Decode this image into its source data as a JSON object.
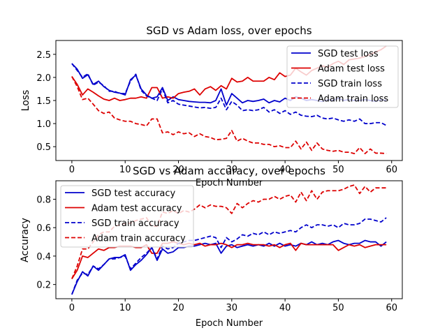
{
  "chart_data": [
    {
      "type": "line",
      "title": "SGD vs Adam loss, over epochs",
      "xlabel": "Epoch Number",
      "ylabel": "Loss",
      "xlim": [
        -3,
        62
      ],
      "ylim": [
        0.2,
        2.8
      ],
      "xticks": [
        0,
        10,
        20,
        30,
        40,
        50,
        60
      ],
      "yticks": [
        0.5,
        1.0,
        1.5,
        2.0,
        2.5
      ],
      "ytick_format": "1",
      "grid": false,
      "legend": "upper right",
      "series": [
        {
          "name": "SGD test loss",
          "color": "#0000cc",
          "dash": "solid",
          "values": [
            2.3,
            2.18,
            1.98,
            2.06,
            1.85,
            1.92,
            1.8,
            1.72,
            1.68,
            1.66,
            1.62,
            1.95,
            2.05,
            1.75,
            1.62,
            1.55,
            1.58,
            1.78,
            1.5,
            1.58,
            1.52,
            1.5,
            1.48,
            1.47,
            1.46,
            1.46,
            1.45,
            1.5,
            1.75,
            1.4,
            1.65,
            1.55,
            1.45,
            1.5,
            1.48,
            1.5,
            1.53,
            1.45,
            1.5,
            1.47,
            1.55,
            1.5,
            1.58,
            1.55,
            1.5,
            1.52,
            1.5,
            1.48,
            1.52,
            1.5,
            1.55,
            1.5,
            1.52,
            1.5,
            1.5,
            1.52,
            1.5,
            1.48,
            1.52,
            1.5
          ]
        },
        {
          "name": "Adam test loss",
          "color": "#dd0000",
          "dash": "solid",
          "values": [
            2.02,
            1.85,
            1.62,
            1.75,
            1.68,
            1.6,
            1.53,
            1.5,
            1.55,
            1.5,
            1.52,
            1.55,
            1.55,
            1.58,
            1.55,
            1.78,
            1.78,
            1.55,
            1.58,
            1.55,
            1.65,
            1.68,
            1.7,
            1.75,
            1.62,
            1.75,
            1.8,
            1.72,
            1.82,
            1.75,
            1.98,
            1.9,
            1.92,
            2.0,
            1.92,
            1.92,
            1.92,
            2.0,
            1.95,
            2.1,
            2.02,
            2.05,
            2.2,
            2.12,
            2.05,
            2.15,
            2.2,
            2.25,
            2.22,
            2.3,
            2.35,
            2.28,
            2.38,
            2.4,
            2.42,
            2.45,
            2.5,
            2.55,
            2.6,
            2.68
          ]
        },
        {
          "name": "SGD train loss",
          "color": "#0000cc",
          "dash": "dashed",
          "values": [
            2.3,
            2.15,
            2.0,
            2.08,
            1.83,
            1.9,
            1.82,
            1.7,
            1.7,
            1.65,
            1.65,
            1.92,
            2.07,
            1.72,
            1.6,
            1.55,
            1.5,
            1.75,
            1.45,
            1.5,
            1.42,
            1.4,
            1.38,
            1.36,
            1.34,
            1.35,
            1.33,
            1.35,
            1.55,
            1.3,
            1.48,
            1.4,
            1.28,
            1.3,
            1.28,
            1.3,
            1.35,
            1.25,
            1.3,
            1.22,
            1.28,
            1.2,
            1.25,
            1.18,
            1.16,
            1.15,
            1.18,
            1.12,
            1.1,
            1.12,
            1.08,
            1.05,
            1.08,
            1.05,
            1.1,
            1.0,
            1.0,
            1.02,
            1.02,
            0.96
          ]
        },
        {
          "name": "Adam train loss",
          "color": "#dd0000",
          "dash": "dashed",
          "values": [
            2.02,
            1.8,
            1.52,
            1.55,
            1.42,
            1.28,
            1.22,
            1.25,
            1.12,
            1.08,
            1.05,
            1.05,
            1.0,
            0.98,
            0.95,
            1.1,
            1.1,
            0.8,
            0.82,
            0.76,
            0.82,
            0.78,
            0.8,
            0.72,
            0.78,
            0.72,
            0.7,
            0.65,
            0.66,
            0.68,
            0.85,
            0.62,
            0.68,
            0.62,
            0.58,
            0.58,
            0.55,
            0.55,
            0.5,
            0.52,
            0.48,
            0.48,
            0.62,
            0.45,
            0.6,
            0.42,
            0.58,
            0.45,
            0.42,
            0.4,
            0.42,
            0.38,
            0.38,
            0.35,
            0.48,
            0.35,
            0.45,
            0.36,
            0.36,
            0.35
          ]
        }
      ]
    },
    {
      "type": "line",
      "title": "SGD vs Adam accuracy, over epochs",
      "xlabel": "Epoch Number",
      "ylabel": "Accuracy",
      "xlim": [
        -3,
        62
      ],
      "ylim": [
        0.1,
        0.93
      ],
      "xticks": [
        0,
        10,
        20,
        30,
        40,
        50,
        60
      ],
      "yticks": [
        0.2,
        0.4,
        0.6,
        0.8
      ],
      "ytick_format": "1",
      "grid": false,
      "legend": "upper left",
      "series": [
        {
          "name": "SGD test accuracy",
          "color": "#0000cc",
          "dash": "solid",
          "values": [
            0.13,
            0.22,
            0.29,
            0.26,
            0.33,
            0.3,
            0.34,
            0.38,
            0.39,
            0.39,
            0.41,
            0.3,
            0.34,
            0.37,
            0.41,
            0.46,
            0.37,
            0.45,
            0.42,
            0.43,
            0.46,
            0.46,
            0.47,
            0.47,
            0.48,
            0.49,
            0.48,
            0.49,
            0.42,
            0.47,
            0.48,
            0.46,
            0.47,
            0.48,
            0.47,
            0.48,
            0.47,
            0.49,
            0.47,
            0.49,
            0.47,
            0.48,
            0.47,
            0.49,
            0.48,
            0.5,
            0.48,
            0.49,
            0.48,
            0.5,
            0.51,
            0.49,
            0.48,
            0.49,
            0.49,
            0.51,
            0.5,
            0.5,
            0.47,
            0.5
          ]
        },
        {
          "name": "Adam test accuracy",
          "color": "#dd0000",
          "dash": "solid",
          "values": [
            0.24,
            0.3,
            0.4,
            0.39,
            0.42,
            0.45,
            0.44,
            0.46,
            0.46,
            0.47,
            0.47,
            0.47,
            0.46,
            0.46,
            0.48,
            0.42,
            0.42,
            0.49,
            0.49,
            0.5,
            0.49,
            0.48,
            0.49,
            0.48,
            0.49,
            0.47,
            0.48,
            0.48,
            0.49,
            0.48,
            0.46,
            0.48,
            0.48,
            0.49,
            0.48,
            0.48,
            0.48,
            0.47,
            0.48,
            0.46,
            0.48,
            0.49,
            0.44,
            0.49,
            0.48,
            0.48,
            0.48,
            0.48,
            0.48,
            0.48,
            0.44,
            0.46,
            0.48,
            0.47,
            0.48,
            0.46,
            0.47,
            0.48,
            0.48,
            0.48
          ]
        },
        {
          "name": "SGD train accuracy",
          "color": "#0000cc",
          "dash": "dashed",
          "values": [
            0.13,
            0.23,
            0.28,
            0.27,
            0.33,
            0.31,
            0.34,
            0.38,
            0.38,
            0.39,
            0.4,
            0.31,
            0.35,
            0.39,
            0.42,
            0.46,
            0.38,
            0.47,
            0.45,
            0.46,
            0.49,
            0.5,
            0.51,
            0.51,
            0.52,
            0.53,
            0.54,
            0.53,
            0.46,
            0.53,
            0.5,
            0.52,
            0.55,
            0.54,
            0.56,
            0.55,
            0.57,
            0.55,
            0.57,
            0.56,
            0.57,
            0.58,
            0.57,
            0.6,
            0.62,
            0.6,
            0.62,
            0.62,
            0.61,
            0.62,
            0.6,
            0.63,
            0.62,
            0.62,
            0.63,
            0.66,
            0.66,
            0.65,
            0.64,
            0.67
          ]
        },
        {
          "name": "Adam train accuracy",
          "color": "#dd0000",
          "dash": "dashed",
          "values": [
            0.24,
            0.33,
            0.45,
            0.45,
            0.5,
            0.55,
            0.57,
            0.57,
            0.61,
            0.62,
            0.63,
            0.63,
            0.65,
            0.66,
            0.67,
            0.61,
            0.61,
            0.71,
            0.7,
            0.72,
            0.7,
            0.72,
            0.71,
            0.73,
            0.76,
            0.74,
            0.76,
            0.75,
            0.75,
            0.74,
            0.7,
            0.77,
            0.74,
            0.77,
            0.79,
            0.78,
            0.8,
            0.8,
            0.82,
            0.8,
            0.82,
            0.83,
            0.78,
            0.85,
            0.79,
            0.86,
            0.8,
            0.85,
            0.86,
            0.86,
            0.86,
            0.87,
            0.89,
            0.9,
            0.84,
            0.89,
            0.85,
            0.88,
            0.88,
            0.88
          ]
        }
      ]
    }
  ]
}
